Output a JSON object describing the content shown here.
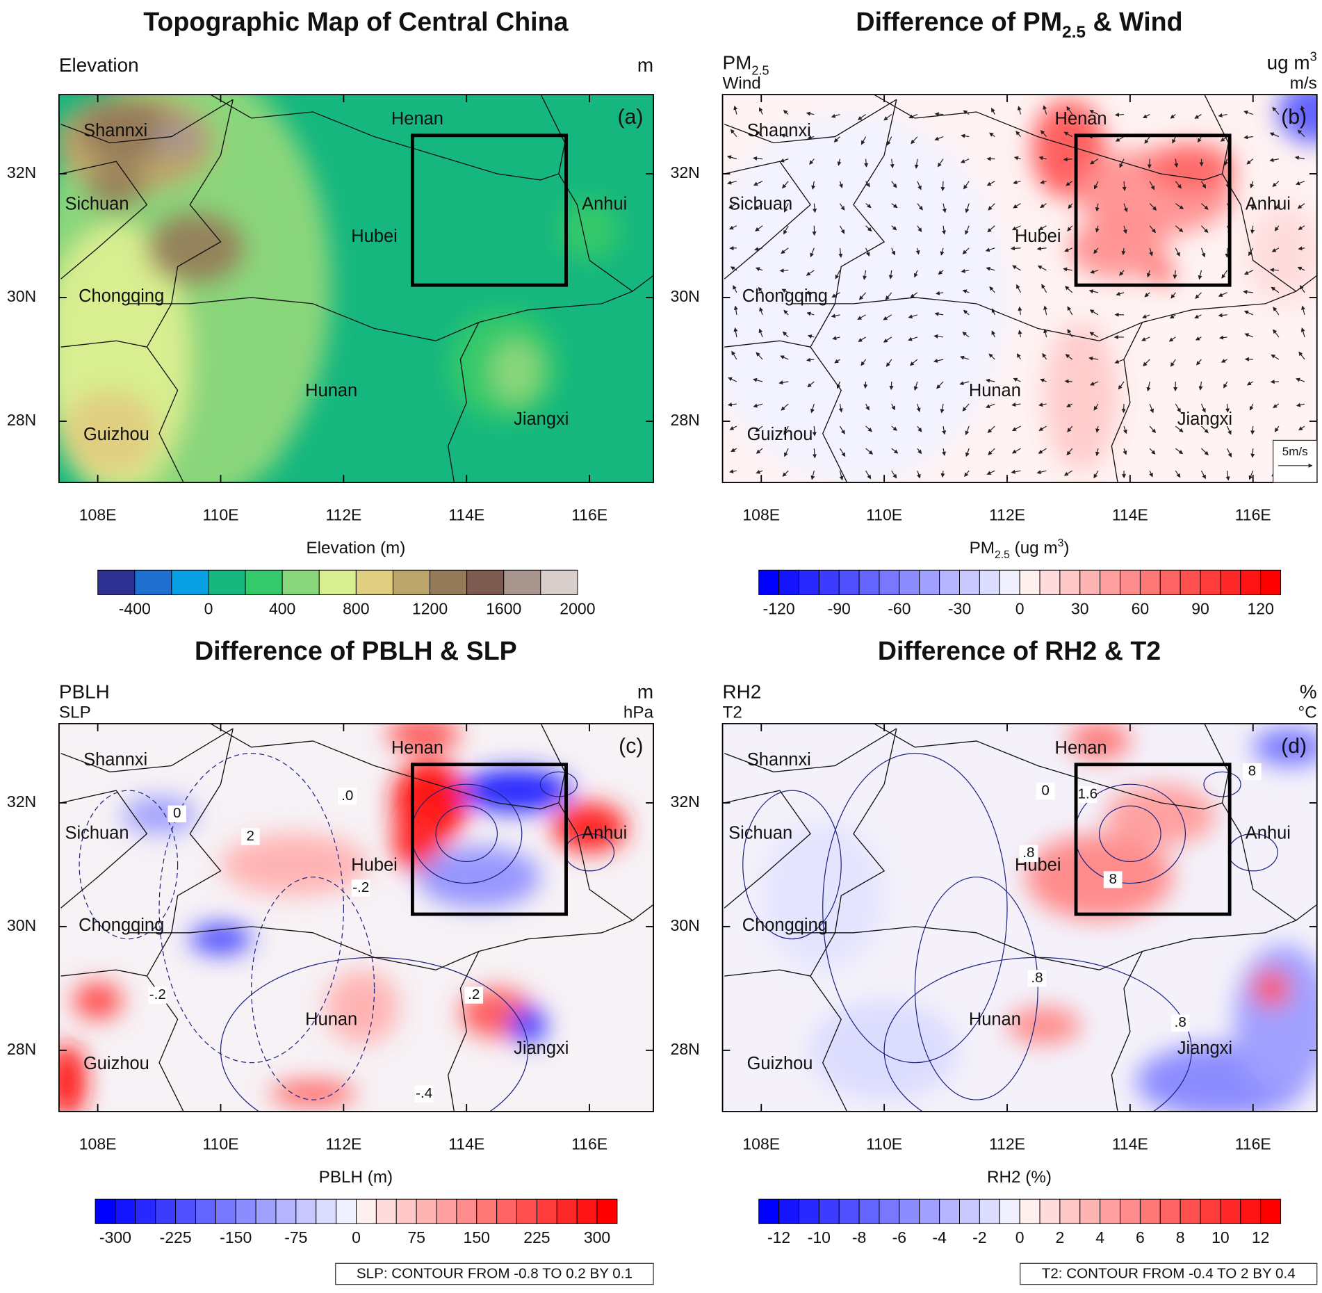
{
  "panels": [
    {
      "tag": "(a)",
      "title": [
        {
          "text": "Topographic Map of Central China"
        }
      ],
      "left1": [
        {
          "text": "Elevation"
        }
      ],
      "right1": [
        {
          "text": "m"
        }
      ],
      "xlabel": [
        {
          "text": "Elevation (m)"
        }
      ],
      "provinces": [
        "Shannxi",
        "Sichuan",
        "Chongqing",
        "Guizhou",
        "Hunan",
        "Hubei",
        "Henan",
        "Anhui",
        "Jiangxi"
      ],
      "xlim": [
        107.37,
        117.04
      ],
      "ylim": [
        27.01,
        33.28
      ],
      "xticks": [
        {
          "value": 108,
          "label": "108E"
        },
        {
          "value": 110,
          "label": "110E"
        },
        {
          "value": 112,
          "label": "112E"
        },
        {
          "value": 114,
          "label": "114E"
        },
        {
          "value": 116,
          "label": "116E"
        }
      ],
      "yticks": [
        {
          "value": 32,
          "label": "32N"
        },
        {
          "value": 30,
          "label": "30N"
        },
        {
          "value": 28,
          "label": "28N"
        }
      ],
      "colorbar": {
        "lim": [
          -600,
          2000
        ],
        "colors": [
          "#2e3192",
          "#1e6fd0",
          "#0aa0e6",
          "#15b77e",
          "#34c96a",
          "#8ad67c",
          "#d8ee90",
          "#e0cf80",
          "#bca56a",
          "#957a59",
          "#7c5a4f",
          "#a8958d",
          "#d8cfcc"
        ],
        "ticks": [
          -400,
          0,
          400,
          800,
          1200,
          1600,
          2000
        ]
      }
    },
    {
      "tag": "(b)",
      "title": [
        {
          "text": "Difference of PM"
        },
        {
          "text": "2.5",
          "shift": "sub"
        },
        {
          "text": " & Wind"
        }
      ],
      "left1": [
        {
          "text": "PM"
        },
        {
          "text": "2.5",
          "shift": "sub"
        }
      ],
      "left2": [
        {
          "text": "Wind"
        }
      ],
      "right1": [
        {
          "text": "ug m"
        },
        {
          "text": "3",
          "shift": "sup"
        }
      ],
      "right2": [
        {
          "text": "m/s"
        }
      ],
      "xlabel": [
        {
          "text": "PM"
        },
        {
          "text": "2.5",
          "shift": "sub"
        },
        {
          "text": " (ug m"
        },
        {
          "text": "3",
          "shift": "sup"
        },
        {
          "text": ")"
        }
      ],
      "reference_vector": "5m/s",
      "provinces": [
        "Shannxi",
        "Sichuan",
        "Chongqing",
        "Guizhou",
        "Hunan",
        "Hubei",
        "Henan",
        "Anhui",
        "Jiangxi"
      ],
      "xlim": [
        107.37,
        117.04
      ],
      "ylim": [
        27.01,
        33.28
      ],
      "xticks": [
        {
          "value": 108,
          "label": "108E"
        },
        {
          "value": 110,
          "label": "110E"
        },
        {
          "value": 112,
          "label": "112E"
        },
        {
          "value": 114,
          "label": "114E"
        },
        {
          "value": 116,
          "label": "116E"
        }
      ],
      "yticks": [
        {
          "value": 32,
          "label": "32N"
        },
        {
          "value": 30,
          "label": "30N"
        },
        {
          "value": 28,
          "label": "28N"
        }
      ],
      "colorbar": {
        "lim": [
          -130,
          130
        ],
        "colors": [
          "#0000ff",
          "#1414ff",
          "#2828ff",
          "#3c3cff",
          "#5050ff",
          "#6464ff",
          "#7878ff",
          "#8c8cff",
          "#a0a0ff",
          "#b4b4ff",
          "#c8c8ff",
          "#dcdcff",
          "#f0f0ff",
          "#fff0f0",
          "#ffdcdc",
          "#ffc8c8",
          "#ffb4b4",
          "#ffa0a0",
          "#ff8c8c",
          "#ff7878",
          "#ff6464",
          "#ff5050",
          "#ff3c3c",
          "#ff2828",
          "#ff1414",
          "#ff0000"
        ],
        "ticks": [
          -120,
          -90,
          -60,
          -30,
          0,
          30,
          60,
          90,
          120
        ]
      }
    },
    {
      "tag": "(c)",
      "title": [
        {
          "text": "Difference of PBLH & SLP"
        }
      ],
      "left1": [
        {
          "text": "PBLH"
        }
      ],
      "left2": [
        {
          "text": "SLP"
        }
      ],
      "right1": [
        {
          "text": "m"
        }
      ],
      "right2": [
        {
          "text": "hPa"
        }
      ],
      "xlabel": [
        {
          "text": "PBLH (m)"
        }
      ],
      "contour_labels": [
        "0",
        "2",
        ".0",
        "-.2",
        "-.2",
        ".2",
        "-.4"
      ],
      "footnote": "SLP: CONTOUR FROM -0.8 TO 0.2 BY 0.1",
      "provinces": [
        "Shannxi",
        "Sichuan",
        "Chongqing",
        "Guizhou",
        "Hunan",
        "Hubei",
        "Henan",
        "Anhui",
        "Jiangxi"
      ],
      "xlim": [
        107.37,
        117.04
      ],
      "ylim": [
        27.01,
        33.28
      ],
      "xticks": [
        {
          "value": 108,
          "label": "108E"
        },
        {
          "value": 110,
          "label": "110E"
        },
        {
          "value": 112,
          "label": "112E"
        },
        {
          "value": 114,
          "label": "114E"
        },
        {
          "value": 116,
          "label": "116E"
        }
      ],
      "yticks": [
        {
          "value": 32,
          "label": "32N"
        },
        {
          "value": 30,
          "label": "30N"
        },
        {
          "value": 28,
          "label": "28N"
        }
      ],
      "colorbar": {
        "lim": [
          -325,
          325
        ],
        "colors": [
          "#0000ff",
          "#1414ff",
          "#2828ff",
          "#3c3cff",
          "#5050ff",
          "#6464ff",
          "#7878ff",
          "#8c8cff",
          "#a0a0ff",
          "#b4b4ff",
          "#c8c8ff",
          "#dcdcff",
          "#f0f0ff",
          "#fff0f0",
          "#ffdcdc",
          "#ffc8c8",
          "#ffb4b4",
          "#ffa0a0",
          "#ff8c8c",
          "#ff7878",
          "#ff6464",
          "#ff5050",
          "#ff3c3c",
          "#ff2828",
          "#ff1414",
          "#ff0000"
        ],
        "ticks": [
          -300,
          -225,
          -150,
          -75,
          0,
          75,
          150,
          225,
          300
        ]
      }
    },
    {
      "tag": "(d)",
      "title": [
        {
          "text": "Difference of RH2 & T2"
        }
      ],
      "left1": [
        {
          "text": "RH2"
        }
      ],
      "left2": [
        {
          "text": "T2"
        }
      ],
      "right1": [
        {
          "text": "%"
        }
      ],
      "right2": [
        {
          "text": "°C"
        }
      ],
      "xlabel": [
        {
          "text": "RH2 (%)"
        }
      ],
      "contour_labels": [
        "1.6",
        "0",
        ".8",
        "8",
        ".8",
        ".8",
        "8"
      ],
      "footnote": "T2: CONTOUR FROM -0.4 TO 2 BY 0.4",
      "provinces": [
        "Shannxi",
        "Sichuan",
        "Chongqing",
        "Guizhou",
        "Hunan",
        "Hubei",
        "Henan",
        "Anhui",
        "Jiangxi"
      ],
      "xlim": [
        107.37,
        117.04
      ],
      "ylim": [
        27.01,
        33.28
      ],
      "xticks": [
        {
          "value": 108,
          "label": "108E"
        },
        {
          "value": 110,
          "label": "110E"
        },
        {
          "value": 112,
          "label": "112E"
        },
        {
          "value": 114,
          "label": "114E"
        },
        {
          "value": 116,
          "label": "116E"
        }
      ],
      "yticks": [
        {
          "value": 32,
          "label": "32N"
        },
        {
          "value": 30,
          "label": "30N"
        },
        {
          "value": 28,
          "label": "28N"
        }
      ],
      "colorbar": {
        "lim": [
          -13,
          13
        ],
        "colors": [
          "#0000ff",
          "#1414ff",
          "#2828ff",
          "#3c3cff",
          "#5050ff",
          "#6464ff",
          "#7878ff",
          "#8c8cff",
          "#a0a0ff",
          "#b4b4ff",
          "#c8c8ff",
          "#dcdcff",
          "#f0f0ff",
          "#fff0f0",
          "#ffdcdc",
          "#ffc8c8",
          "#ffb4b4",
          "#ffa0a0",
          "#ff8c8c",
          "#ff7878",
          "#ff6464",
          "#ff5050",
          "#ff3c3c",
          "#ff2828",
          "#ff1414",
          "#ff0000"
        ],
        "ticks": [
          -12,
          -10,
          -8,
          -6,
          -4,
          -2,
          0,
          2,
          4,
          6,
          8,
          10,
          12
        ]
      }
    }
  ]
}
